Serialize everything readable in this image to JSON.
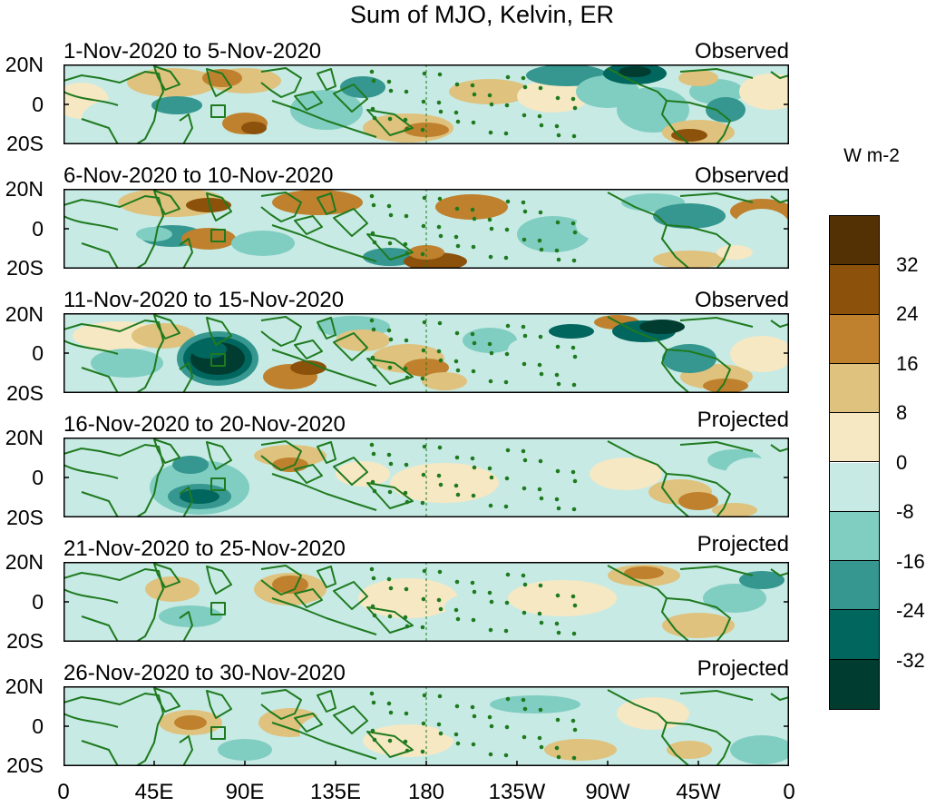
{
  "title": "Sum of MJO, Kelvin, ER",
  "lat_labels": [
    "20N",
    "0",
    "20S"
  ],
  "lon_labels": [
    "0",
    "45E",
    "90E",
    "135E",
    "180",
    "135W",
    "90W",
    "45W",
    "0"
  ],
  "panels": [
    {
      "date_range": "1-Nov-2020 to 5-Nov-2020",
      "status": "Observed"
    },
    {
      "date_range": "6-Nov-2020 to 10-Nov-2020",
      "status": "Observed"
    },
    {
      "date_range": "11-Nov-2020 to 15-Nov-2020",
      "status": "Observed"
    },
    {
      "date_range": "16-Nov-2020 to 20-Nov-2020",
      "status": "Projected"
    },
    {
      "date_range": "21-Nov-2020 to 25-Nov-2020",
      "status": "Projected"
    },
    {
      "date_range": "26-Nov-2020 to 30-Nov-2020",
      "status": "Projected"
    }
  ],
  "colorbar": {
    "units": "W m-2",
    "tick_labels": [
      "32",
      "24",
      "16",
      "8",
      "0",
      "-8",
      "-16",
      "-24",
      "-32"
    ],
    "colors": [
      "#543005",
      "#8c510a",
      "#bf812d",
      "#dfc27d",
      "#f6e8c3",
      "#c7eae5",
      "#80cdc1",
      "#35978f",
      "#01665e",
      "#003c30"
    ]
  },
  "colors": {
    "coastline": "#1f7a1f",
    "background": "#ffffff"
  }
}
